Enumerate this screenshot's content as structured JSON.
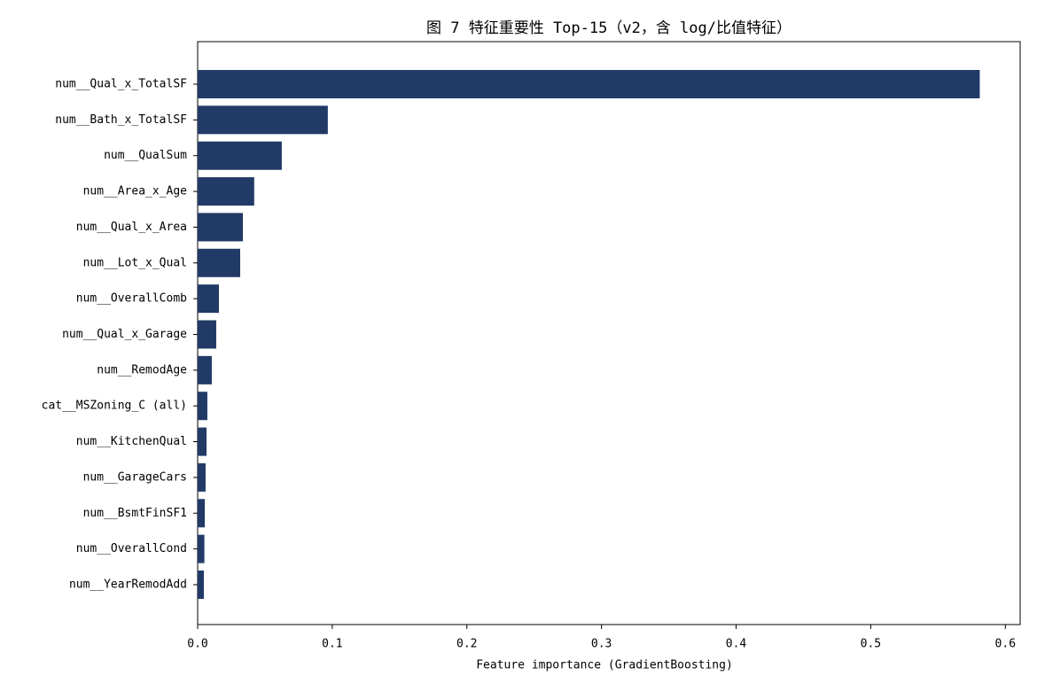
{
  "chart_data": {
    "type": "barh",
    "title": "图 7  特征重要性 Top-15（v2，含 log/比值特征）",
    "x_label": "Feature importance (GradientBoosting)",
    "categories": [
      "num__Qual_x_TotalSF",
      "num__Bath_x_TotalSF",
      "num__QualSum",
      "num__Area_x_Age",
      "num__Qual_x_Area",
      "num__Lot_x_Qual",
      "num__OverallComb",
      "num__Qual_x_Garage",
      "num__RemodAge",
      "cat__MSZoning_C (all)",
      "num__KitchenQual",
      "num__GarageCars",
      "num__BsmtFinSF1",
      "num__OverallCond",
      "num__YearRemodAdd"
    ],
    "values": [
      0.581,
      0.0967,
      0.0625,
      0.042,
      0.0336,
      0.0316,
      0.0158,
      0.0138,
      0.0105,
      0.0072,
      0.0066,
      0.0059,
      0.0053,
      0.005,
      0.0046
    ],
    "color": "#213a66",
    "xlim": [
      0,
      0.611
    ],
    "xticks": [
      {
        "value": 0,
        "label": "0.0"
      },
      0.1,
      0.2,
      0.3,
      0.4,
      0.5,
      0.6
    ],
    "grid": false
  }
}
